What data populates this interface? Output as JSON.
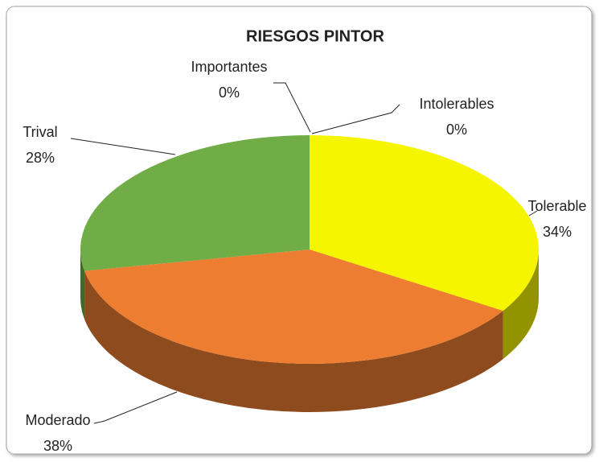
{
  "chart_data": {
    "type": "pie3d",
    "title": "RIESGOS PINTOR",
    "categories": [
      "Intolerables",
      "Tolerable",
      "Moderado",
      "Trival",
      "Importantes"
    ],
    "values": [
      0,
      34,
      38,
      28,
      0
    ],
    "value_labels": [
      "0%",
      "34%",
      "38%",
      "28%",
      "0%"
    ],
    "colors": [
      "#c00000",
      "#f5f500",
      "#ed7d31",
      "#70ad47",
      "#ff0000"
    ]
  }
}
